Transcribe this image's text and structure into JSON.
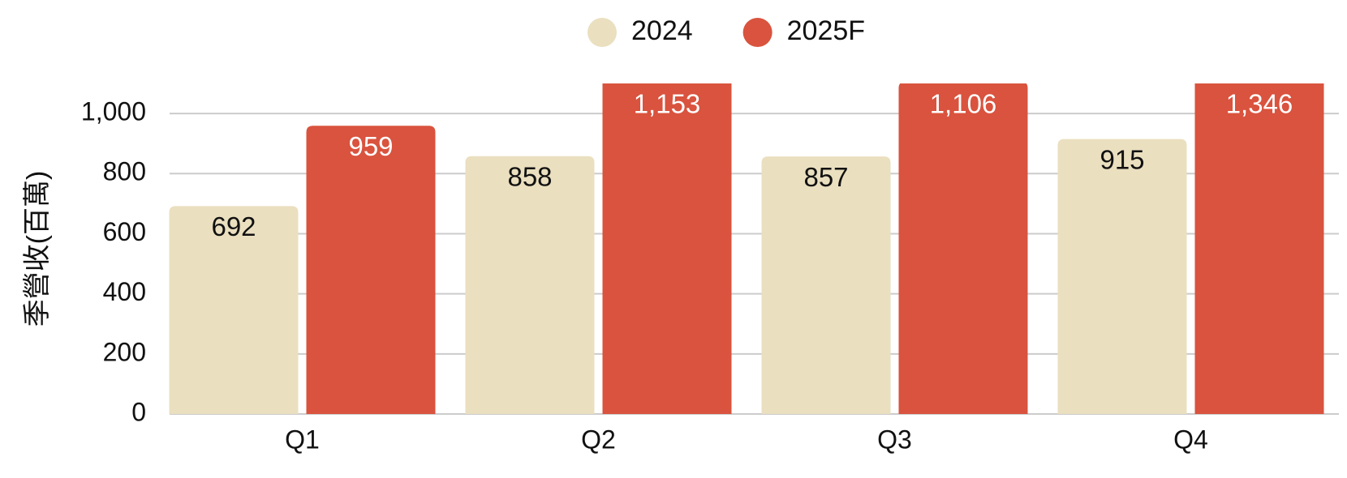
{
  "chart_data": {
    "type": "bar",
    "y_label": "季營收(百萬)",
    "categories": [
      "Q1",
      "Q2",
      "Q3",
      "Q4"
    ],
    "series": [
      {
        "name": "2024",
        "color": "#eadfbf",
        "label_color": "#111111",
        "values": [
          692,
          858,
          857,
          915
        ]
      },
      {
        "name": "2025F",
        "color": "#d9533e",
        "label_color": "#ffffff",
        "values": [
          959,
          1153,
          1106,
          1346
        ],
        "value_labels": [
          "959",
          "1,153",
          "1,106",
          "1,346"
        ]
      }
    ],
    "ylim": [
      0,
      1100
    ],
    "yticks": [
      0,
      200,
      400,
      600,
      800,
      {
        "value": 1000,
        "label": "1,000"
      }
    ],
    "grid": true,
    "legend": "top"
  }
}
